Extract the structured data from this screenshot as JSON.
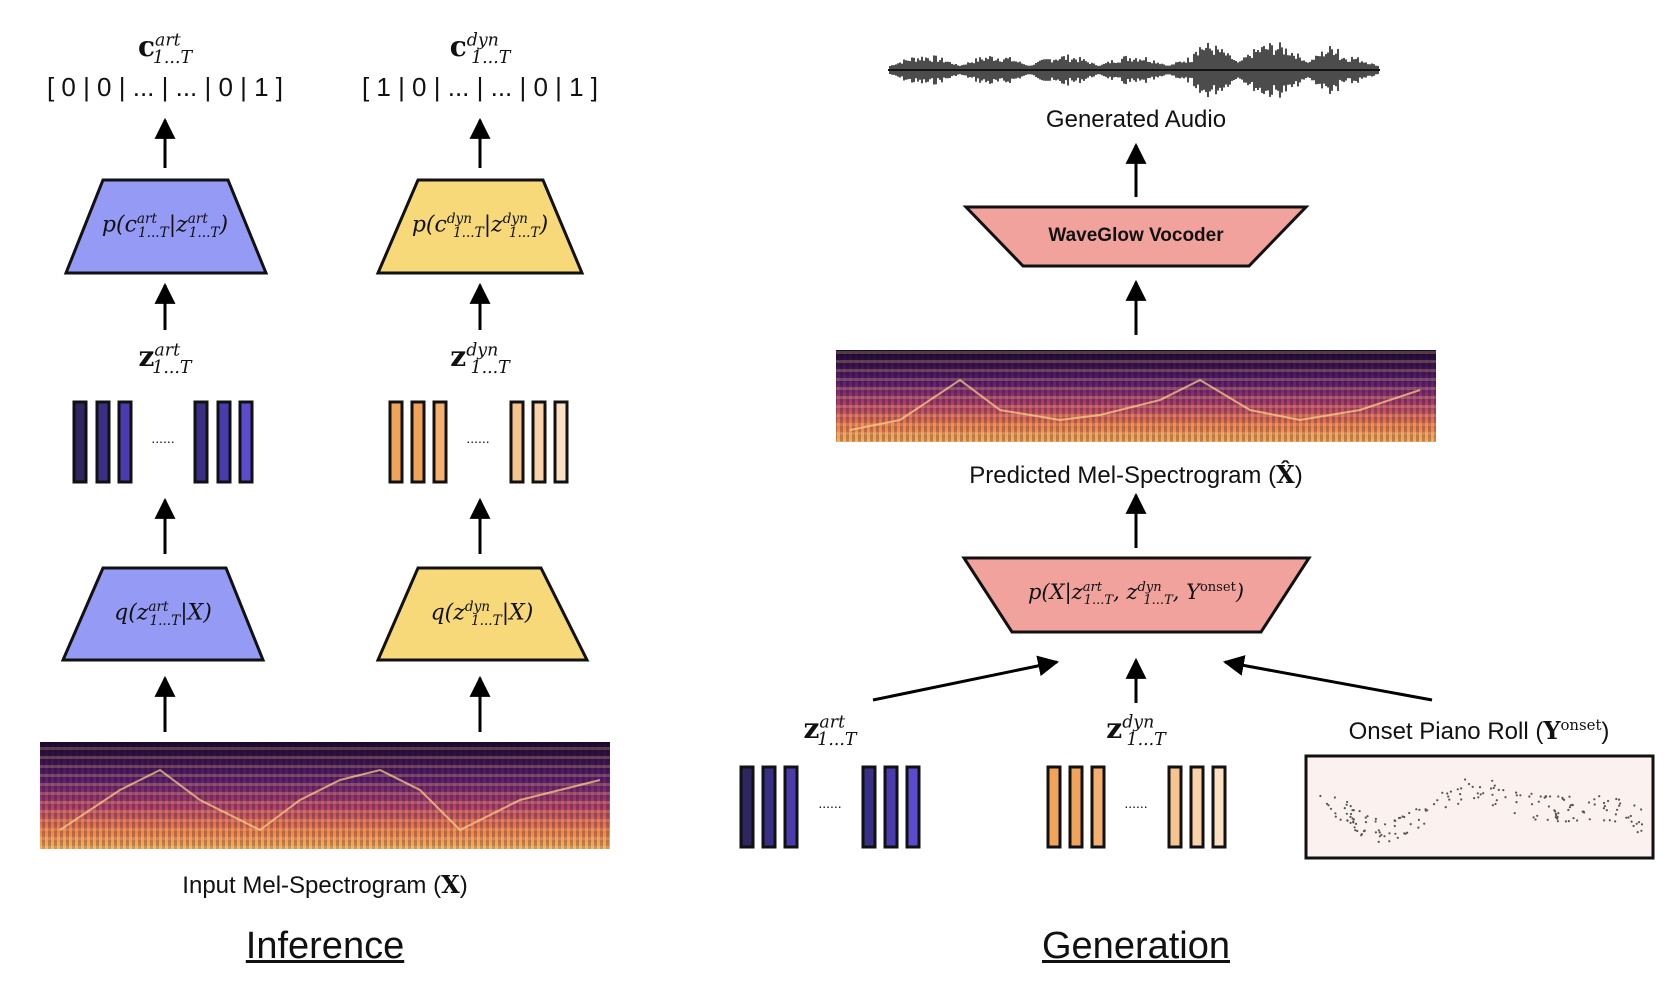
{
  "inference": {
    "title": "Inference",
    "art_output": {
      "vector": "[ 0 | 0 | ... | ... | 0 | 1 ]",
      "symbol": "c",
      "sup": "art",
      "sub": "1...T"
    },
    "dyn_output": {
      "vector": "[ 1 | 0 | ... | ... | 0 | 1 ]",
      "symbol": "c",
      "sup": "dyn",
      "sub": "1...T"
    },
    "art_decoder": {
      "text": "p(c",
      "sup": "art",
      "sub": "1...T",
      "cond": "|z",
      "cond_sup": "art",
      "cond_sub": "1...T",
      "close": ")"
    },
    "dyn_decoder": {
      "text": "p(c",
      "sup": "dyn",
      "sub": "1...T",
      "cond": "|z",
      "cond_sup": "dyn",
      "cond_sub": "1...T",
      "close": ")"
    },
    "art_latent": {
      "symbol": "z",
      "sup": "art",
      "sub": "1...T",
      "dots": "......"
    },
    "dyn_latent": {
      "symbol": "z",
      "sup": "dyn",
      "sub": "1...T",
      "dots": "......"
    },
    "art_encoder": {
      "text": "q(z",
      "sup": "art",
      "sub": "1...T",
      "cond": "|X)"
    },
    "dyn_encoder": {
      "text": "q(z",
      "sup": "dyn",
      "sub": "1...T",
      "cond": "|X)"
    },
    "input_caption": "Input Mel-Spectrogram (",
    "input_symbol": "X",
    "input_close": ")"
  },
  "generation": {
    "title": "Generation",
    "audio_caption": "Generated Audio",
    "vocoder_label": "WaveGlow Vocoder",
    "predicted_caption": "Predicted Mel-Spectrogram (",
    "predicted_symbol": "X̂",
    "predicted_close": ")",
    "decoder": {
      "text": "p(X|z",
      "sup1": "art",
      "sub1": "1...T",
      "mid": ", z",
      "sup2": "dyn",
      "sub2": "1...T",
      "mid2": ", Y",
      "sup3": "onset",
      "close": ")"
    },
    "art_latent": {
      "symbol": "z",
      "sup": "art",
      "sub": "1...T",
      "dots": "......"
    },
    "dyn_latent": {
      "symbol": "z",
      "sup": "dyn",
      "sub": "1...T",
      "dots": "......"
    },
    "piano_roll_caption": "Onset Piano Roll (",
    "piano_roll_symbol": "Y",
    "piano_roll_sup": "onset",
    "piano_roll_close": ")"
  },
  "colors": {
    "art_trapezoid": "#959af5",
    "dyn_trapezoid": "#f7d97a",
    "gen_trapezoid": "#f2a29d",
    "art_bars": [
      "#2e2660",
      "#3a2f86",
      "#4a3cae",
      "#5a4bd0"
    ],
    "dyn_bars": [
      "#f2a35a",
      "#f5b878",
      "#f8cc9c",
      "#fbe0c2"
    ],
    "piano_roll_bg": "#fbf1ef"
  }
}
